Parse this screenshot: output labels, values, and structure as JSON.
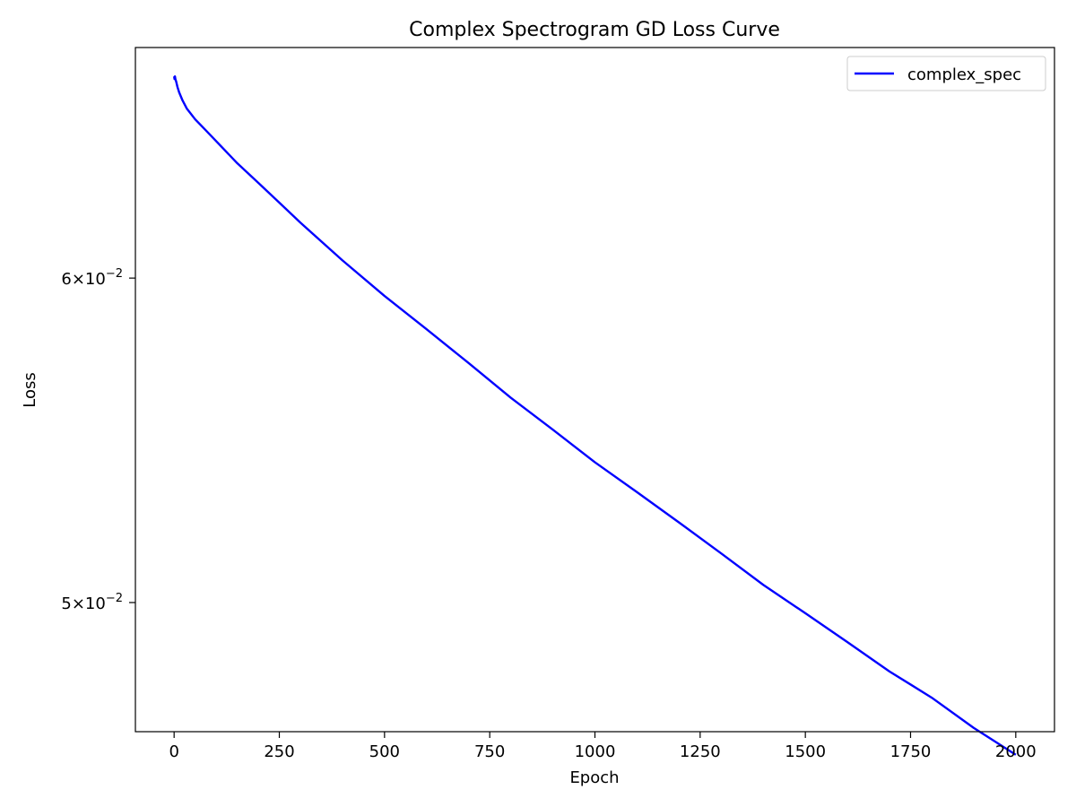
{
  "chart_data": {
    "type": "line",
    "title": "Complex Spectrogram GD Loss Curve",
    "xlabel": "Epoch",
    "ylabel": "Loss",
    "xlim": [
      -92,
      2092
    ],
    "ylim": [
      0.0465,
      0.0683
    ],
    "yscale": "log",
    "grid": false,
    "legend_position": "upper-right",
    "x_ticks": [
      {
        "value": 0,
        "label": "0"
      },
      {
        "value": 250,
        "label": "250"
      },
      {
        "value": 500,
        "label": "500"
      },
      {
        "value": 750,
        "label": "750"
      },
      {
        "value": 1000,
        "label": "1000"
      },
      {
        "value": 1250,
        "label": "1250"
      },
      {
        "value": 1500,
        "label": "1500"
      },
      {
        "value": 1750,
        "label": "1750"
      },
      {
        "value": 2000,
        "label": "2000"
      }
    ],
    "y_ticks": [
      {
        "value": 0.06,
        "mantissa": "6",
        "base": "10",
        "exponent": "−2"
      },
      {
        "value": 0.05,
        "mantissa": "5",
        "base": "10",
        "exponent": "−2"
      }
    ],
    "series": [
      {
        "name": "complex_spec",
        "color": "#0000ff",
        "x": [
          0,
          1,
          2,
          3,
          5,
          8,
          12,
          20,
          30,
          50,
          75,
          100,
          150,
          200,
          250,
          300,
          400,
          500,
          600,
          700,
          800,
          900,
          1000,
          1100,
          1200,
          1300,
          1400,
          1500,
          1600,
          1700,
          1800,
          1900,
          2000
        ],
        "values": [
          0.0672,
          0.0671,
          0.0672,
          0.0671,
          0.067,
          0.0668,
          0.0666,
          0.0663,
          0.066,
          0.0656,
          0.0652,
          0.0648,
          0.064,
          0.0633,
          0.0626,
          0.0619,
          0.0606,
          0.0594,
          0.0583,
          0.0572,
          0.0561,
          0.0551,
          0.0541,
          0.0532,
          0.0523,
          0.0514,
          0.0505,
          0.0497,
          0.0489,
          0.0481,
          0.0474,
          0.0466,
          0.0459
        ]
      }
    ]
  }
}
